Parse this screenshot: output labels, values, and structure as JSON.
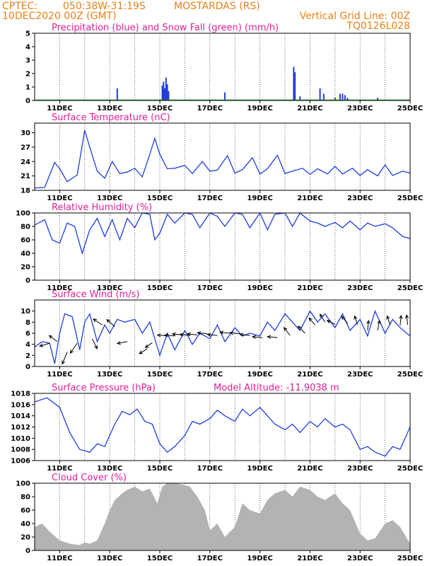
{
  "header": {
    "line1_left": "CPTEC:",
    "line1_coords": "050:38W-31:19S",
    "line1_place": "MOSTARDAS (RS)",
    "line2_left": "10DEC2020 00Z (GMT)",
    "line2_right": "Vertical Grid Line: 00Z",
    "line3_right": "TQ0126L028"
  },
  "colors": {
    "header": "#e8801a",
    "title": "#e0209a",
    "series": "#1f3ddf",
    "snow": "#1a9a1a",
    "cloud": "#b3b3b3",
    "wind": "#000000"
  },
  "x_axis": {
    "start_day": 10,
    "end_day": 25,
    "tick_labels": [
      "11DEC",
      "13DEC",
      "15DEC",
      "17DEC",
      "19DEC",
      "21DEC",
      "23DEC",
      "25DEC"
    ],
    "tick_days": [
      11,
      13,
      15,
      17,
      19,
      21,
      23,
      25
    ]
  },
  "chart_data": [
    {
      "id": "precip",
      "type": "bar",
      "title": "Precipitation (blue) and Snow Fall (green) (mm/h)",
      "ylim": [
        0,
        5
      ],
      "yticks": [
        0,
        1,
        2,
        3,
        4,
        5
      ],
      "x_unit": "days",
      "series": [
        {
          "name": "Precipitation",
          "color": "#1f3ddf",
          "x": [
            13.3,
            15.1,
            15.15,
            15.2,
            15.25,
            15.3,
            15.35,
            17.6,
            20.35,
            20.4,
            20.6,
            21.4,
            21.55,
            22.0,
            22.2,
            22.3,
            22.4,
            22.5,
            23.7
          ],
          "values": [
            0.9,
            1.1,
            1.4,
            0.9,
            1.7,
            1.2,
            0.7,
            0.6,
            2.5,
            2.1,
            0.3,
            0.9,
            0.5,
            0.2,
            0.5,
            0.5,
            0.4,
            0.2,
            0.2
          ]
        }
      ],
      "snow_values": 0
    },
    {
      "id": "temperature",
      "type": "line",
      "title": "Surface Temperature (nC)",
      "ylim": [
        18,
        32
      ],
      "yticks": [
        18,
        21,
        24,
        27,
        30
      ],
      "x": [
        10,
        10.4,
        10.8,
        11.0,
        11.3,
        11.7,
        12.0,
        12.2,
        12.5,
        12.8,
        13.1,
        13.4,
        13.7,
        14.0,
        14.3,
        14.6,
        14.8,
        15.0,
        15.3,
        15.6,
        16.0,
        16.3,
        16.7,
        17.0,
        17.3,
        17.7,
        18.0,
        18.3,
        18.7,
        19.0,
        19.3,
        19.7,
        20.0,
        20.3,
        20.7,
        21.0,
        21.3,
        21.7,
        22.0,
        22.3,
        22.7,
        23.0,
        23.3,
        23.7,
        24.0,
        24.3,
        24.7,
        25.0
      ],
      "values": [
        18.5,
        18.6,
        23.8,
        22.5,
        19.8,
        21.2,
        30.5,
        27.0,
        22.0,
        20.5,
        24.0,
        21.5,
        21.8,
        22.6,
        20.8,
        25.5,
        28.8,
        25.5,
        22.5,
        22.6,
        23.2,
        21.5,
        24.0,
        22.0,
        22.2,
        25.2,
        21.6,
        22.3,
        24.8,
        21.4,
        22.5,
        25.3,
        21.5,
        22.0,
        22.6,
        21.3,
        22.5,
        21.4,
        23.0,
        21.4,
        22.6,
        21.1,
        22.3,
        21.0,
        23.3,
        21.1,
        22.0,
        21.6
      ]
    },
    {
      "id": "humidity",
      "type": "line",
      "title": "Relative Humidity (%)",
      "ylim": [
        0,
        100
      ],
      "yticks": [
        0,
        20,
        40,
        60,
        80,
        100
      ],
      "x": [
        10,
        10.4,
        10.7,
        11.0,
        11.3,
        11.6,
        11.9,
        12.2,
        12.5,
        12.8,
        13.1,
        13.4,
        13.7,
        14.0,
        14.3,
        14.6,
        14.8,
        15.0,
        15.3,
        15.6,
        16.0,
        16.3,
        16.6,
        17.0,
        17.3,
        17.6,
        18.0,
        18.3,
        18.6,
        19.0,
        19.3,
        19.6,
        20.0,
        20.3,
        20.6,
        21.0,
        21.3,
        21.6,
        22.0,
        22.3,
        22.6,
        23.0,
        23.3,
        23.6,
        24.0,
        24.3,
        24.7,
        25.0
      ],
      "values": [
        82,
        90,
        60,
        55,
        85,
        80,
        40,
        75,
        92,
        65,
        90,
        60,
        92,
        78,
        100,
        98,
        60,
        70,
        98,
        85,
        100,
        98,
        78,
        100,
        95,
        80,
        100,
        98,
        78,
        100,
        75,
        98,
        100,
        80,
        100,
        88,
        85,
        80,
        86,
        78,
        88,
        75,
        85,
        80,
        84,
        78,
        65,
        62
      ]
    },
    {
      "id": "wind",
      "type": "line",
      "title": "Surface Wind (m/s)",
      "ylim": [
        0,
        12
      ],
      "yticks": [
        0,
        2,
        4,
        6,
        8,
        10
      ],
      "x": [
        10,
        10.3,
        10.6,
        10.8,
        11.0,
        11.2,
        11.5,
        11.8,
        12.0,
        12.2,
        12.5,
        12.8,
        13.0,
        13.3,
        13.6,
        14.0,
        14.3,
        14.6,
        15.0,
        15.3,
        15.6,
        16.0,
        16.3,
        16.6,
        17.0,
        17.3,
        17.6,
        18.0,
        18.3,
        18.6,
        19.0,
        19.3,
        19.6,
        20.0,
        20.3,
        20.6,
        21.0,
        21.3,
        21.6,
        22.0,
        22.3,
        22.6,
        23.0,
        23.3,
        23.6,
        24.0,
        24.3,
        24.6,
        25.0
      ],
      "values": [
        3.5,
        4.5,
        4.2,
        0.5,
        6.0,
        9.5,
        9.0,
        3.0,
        8.0,
        9.5,
        4.5,
        7.5,
        6.0,
        8.5,
        8.0,
        8.5,
        6.0,
        8.0,
        2.0,
        6.0,
        3.0,
        6.5,
        4.0,
        6.0,
        5.0,
        7.5,
        4.5,
        7.0,
        5.5,
        6.0,
        5.5,
        8.0,
        6.5,
        9.5,
        8.0,
        6.5,
        10.0,
        8.0,
        9.5,
        7.0,
        9.5,
        6.5,
        8.5,
        5.5,
        10.0,
        6.0,
        8.5,
        7.0,
        5.5
      ],
      "arrows": [
        {
          "x": 10.6,
          "y": 4.2,
          "u": -1.0,
          "v": -0.3
        },
        {
          "x": 10.9,
          "y": 4.5,
          "u": -0.8,
          "v": 0.6
        },
        {
          "x": 11.3,
          "y": 2.6,
          "u": -0.5,
          "v": -1.2
        },
        {
          "x": 11.7,
          "y": 4.2,
          "u": -0.7,
          "v": -1.0
        },
        {
          "x": 12.3,
          "y": 5.0,
          "u": 0.5,
          "v": -1.0
        },
        {
          "x": 12.7,
          "y": 7.5,
          "u": -0.9,
          "v": 0.6
        },
        {
          "x": 13.2,
          "y": 7.2,
          "u": -0.8,
          "v": 0.7
        },
        {
          "x": 13.7,
          "y": 4.5,
          "u": -1.0,
          "v": -0.2
        },
        {
          "x": 14.5,
          "y": 3.2,
          "u": -0.8,
          "v": -0.5
        },
        {
          "x": 14.7,
          "y": 4.3,
          "u": -0.7,
          "v": -0.5
        },
        {
          "x": 15.3,
          "y": 5.5,
          "u": -1.0,
          "v": 0.1
        },
        {
          "x": 15.6,
          "y": 5.5,
          "u": -1.0,
          "v": 0.1
        },
        {
          "x": 15.9,
          "y": 5.7,
          "u": -1.0,
          "v": 0.1
        },
        {
          "x": 16.2,
          "y": 5.6,
          "u": -1.0,
          "v": 0.1
        },
        {
          "x": 16.5,
          "y": 5.7,
          "u": -1.0,
          "v": 0.1
        },
        {
          "x": 16.9,
          "y": 5.9,
          "u": -1.0,
          "v": 0.1
        },
        {
          "x": 17.3,
          "y": 5.6,
          "u": -1.0,
          "v": 0.1
        },
        {
          "x": 17.8,
          "y": 6.0,
          "u": -1.0,
          "v": 0.1
        },
        {
          "x": 18.2,
          "y": 5.9,
          "u": -1.0,
          "v": 0.1
        },
        {
          "x": 18.6,
          "y": 5.6,
          "u": -1.0,
          "v": 0.1
        },
        {
          "x": 19.1,
          "y": 5.2,
          "u": -1.0,
          "v": 0.1
        },
        {
          "x": 19.7,
          "y": 5.2,
          "u": -1.0,
          "v": 0.1
        },
        {
          "x": 20.2,
          "y": 5.6,
          "u": -0.6,
          "v": 0.8
        },
        {
          "x": 20.8,
          "y": 6.0,
          "u": -0.7,
          "v": 0.7
        },
        {
          "x": 21.2,
          "y": 7.5,
          "u": -0.6,
          "v": 0.7
        },
        {
          "x": 21.6,
          "y": 8.0,
          "u": -0.5,
          "v": 0.8
        },
        {
          "x": 22.0,
          "y": 7.6,
          "u": -0.8,
          "v": 0.4
        },
        {
          "x": 22.5,
          "y": 7.8,
          "u": -0.6,
          "v": 0.7
        },
        {
          "x": 22.9,
          "y": 7.5,
          "u": -0.3,
          "v": 0.9
        },
        {
          "x": 23.3,
          "y": 6.5,
          "u": 0.1,
          "v": 1.0
        },
        {
          "x": 23.7,
          "y": 6.5,
          "u": 0.2,
          "v": 1.0
        },
        {
          "x": 24.2,
          "y": 7.5,
          "u": -0.3,
          "v": 0.9
        },
        {
          "x": 24.6,
          "y": 7.4,
          "u": 0.1,
          "v": 1.0
        },
        {
          "x": 24.9,
          "y": 7.5,
          "u": -0.1,
          "v": 1.0
        }
      ]
    },
    {
      "id": "pressure",
      "type": "line",
      "title": "Surface Pressure (hPa)",
      "annotation": "Model Altitude: -11.9038 m",
      "ylim": [
        1006,
        1018
      ],
      "yticks": [
        1006,
        1008,
        1010,
        1012,
        1014,
        1016,
        1018
      ],
      "x": [
        10,
        10.5,
        11.0,
        11.4,
        11.8,
        12.2,
        12.5,
        12.8,
        13.2,
        13.5,
        13.8,
        14.1,
        14.4,
        14.7,
        15.0,
        15.3,
        15.6,
        16.0,
        16.3,
        16.6,
        17.0,
        17.3,
        17.6,
        18.0,
        18.3,
        18.6,
        19.0,
        19.3,
        19.6,
        20.0,
        20.3,
        20.6,
        21.0,
        21.3,
        21.6,
        22.0,
        22.3,
        22.6,
        23.0,
        23.3,
        23.6,
        24.0,
        24.3,
        24.6,
        25.0
      ],
      "values": [
        1016.5,
        1017.2,
        1015.5,
        1011.0,
        1008.0,
        1007.5,
        1009.0,
        1008.5,
        1012.5,
        1014.8,
        1014.2,
        1015.2,
        1013.0,
        1012.5,
        1009.0,
        1007.5,
        1008.5,
        1010.5,
        1013.0,
        1012.5,
        1013.5,
        1015.0,
        1014.0,
        1013.0,
        1015.2,
        1014.0,
        1015.5,
        1014.0,
        1012.5,
        1011.5,
        1012.5,
        1011.0,
        1013.0,
        1012.0,
        1013.5,
        1012.0,
        1012.5,
        1011.5,
        1008.0,
        1008.5,
        1007.5,
        1006.8,
        1008.5,
        1008.0,
        1012.0
      ]
    },
    {
      "id": "cloud",
      "type": "area",
      "title": "Cloud Cover (%)",
      "ylim": [
        0,
        100
      ],
      "yticks": [
        0,
        20,
        40,
        60,
        80,
        100
      ],
      "x": [
        10,
        10.3,
        10.6,
        11.0,
        11.4,
        11.8,
        12.0,
        12.2,
        12.5,
        12.8,
        13.0,
        13.2,
        13.5,
        13.7,
        14.0,
        14.3,
        14.6,
        14.9,
        15.1,
        15.3,
        15.6,
        15.9,
        16.2,
        16.5,
        16.8,
        17.0,
        17.3,
        17.6,
        18.0,
        18.3,
        18.6,
        19.0,
        19.3,
        19.6,
        20.0,
        20.3,
        20.6,
        21.0,
        21.3,
        21.6,
        22.0,
        22.3,
        22.6,
        23.0,
        23.3,
        23.6,
        24.0,
        24.3,
        24.6,
        25.0
      ],
      "values": [
        35,
        40,
        28,
        15,
        10,
        8,
        12,
        10,
        15,
        40,
        60,
        75,
        85,
        90,
        95,
        88,
        92,
        70,
        95,
        100,
        100,
        98,
        95,
        80,
        60,
        30,
        40,
        20,
        35,
        70,
        60,
        55,
        75,
        85,
        90,
        80,
        95,
        90,
        80,
        75,
        85,
        70,
        60,
        25,
        15,
        18,
        40,
        45,
        35,
        10
      ]
    }
  ]
}
